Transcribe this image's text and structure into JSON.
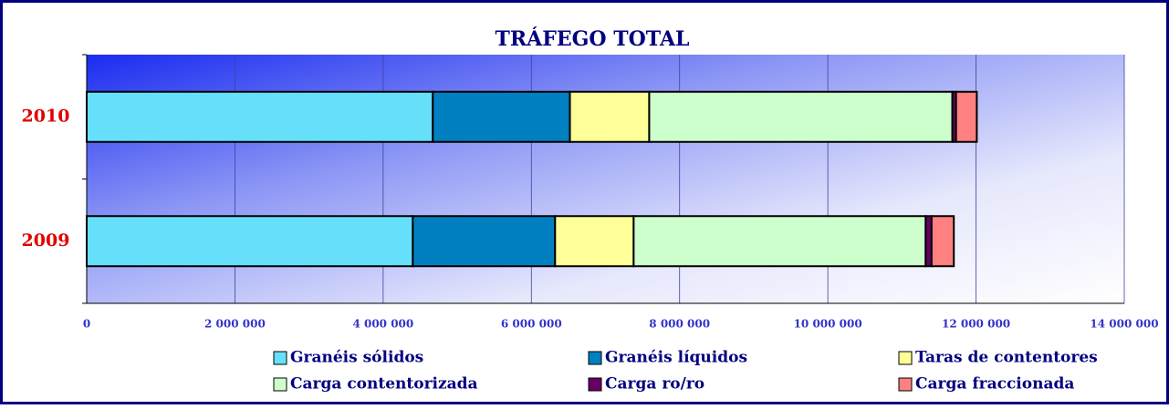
{
  "chart_data": {
    "type": "stacked-bar-horizontal",
    "title": "TRÁFEGO TOTAL",
    "categories": [
      "2010",
      "2009"
    ],
    "series": [
      {
        "name": "Granéis sólidos",
        "color": "#66e0fa",
        "values": [
          4670000,
          4400000
        ]
      },
      {
        "name": "Granéis líquidos",
        "color": "#0080c0",
        "values": [
          1850000,
          1920000
        ]
      },
      {
        "name": "Taras de contentores",
        "color": "#ffff99",
        "values": [
          1070000,
          1060000
        ]
      },
      {
        "name": "Carga contentorizada",
        "color": "#ccffcc",
        "values": [
          4090000,
          3940000
        ]
      },
      {
        "name": "Carga ro/ro",
        "color": "#660066",
        "values": [
          50000,
          80000
        ]
      },
      {
        "name": "Carga fraccionada",
        "color": "#ff8080",
        "values": [
          280000,
          300000
        ]
      }
    ],
    "xlim": [
      0,
      14000000
    ],
    "xticks": [
      0,
      {
        "value": 2000000,
        "label": "2 000 000"
      },
      {
        "value": 4000000,
        "label": "4 000 000"
      },
      {
        "value": 6000000,
        "label": "6 000 000"
      },
      {
        "value": 8000000,
        "label": "8 000 000"
      },
      {
        "value": 10000000,
        "label": "10 000 000"
      },
      {
        "value": 12000000,
        "label": "12 000 000"
      },
      {
        "value": 14000000,
        "label": "14 000 000"
      }
    ],
    "grid": true,
    "legend": "bottom"
  }
}
